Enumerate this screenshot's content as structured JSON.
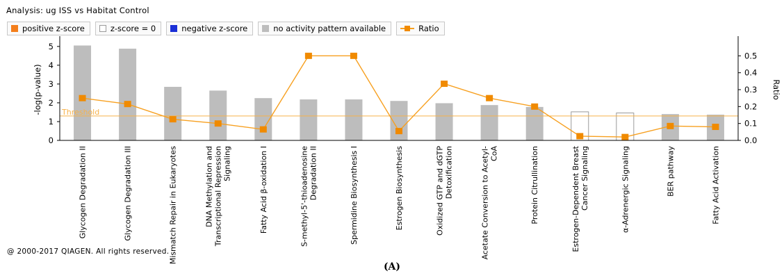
{
  "header": {
    "title": "Analysis: ug ISS vs Habitat Control"
  },
  "legend": [
    {
      "label": "positive z-score",
      "kind": "box",
      "color": "#f47e1b",
      "border": "#f47e1b"
    },
    {
      "label": "z-score = 0",
      "kind": "box",
      "color": "#ffffff",
      "border": "#9a9a9a"
    },
    {
      "label": "negative z-score",
      "kind": "box",
      "color": "#1a2fd6",
      "border": "#1a2fd6"
    },
    {
      "label": "no activity pattern available",
      "kind": "box",
      "color": "#bdbdbd",
      "border": "#bdbdbd"
    },
    {
      "label": "Ratio",
      "kind": "line",
      "color": "#f7a020",
      "border": "#f7a020"
    }
  ],
  "footer": {
    "copyright": "@ 2000-2017 QIAGEN. All rights reserved.",
    "panel_label": "(A)"
  },
  "colors": {
    "bar_gray": "#bdbdbd",
    "bar_zero_fill": "#ffffff",
    "bar_zero_stroke": "#9a9a9a",
    "ratio_line": "#f7a020",
    "ratio_marker": "#f08a00",
    "threshold": "#f7b24a"
  },
  "chart_data": {
    "type": "bar",
    "categories": [
      "Glycogen Degradation II",
      "Glycogen Degradation III",
      "Mismatch Repair in Eukaryotes",
      "DNA Methylation and Transcriptional Repression Signaling",
      "Fatty Acid β-oxidation I",
      "S-methyl-5'-thioadenosine Degradation II",
      "Spermidine Biosynthesis I",
      "Estrogen Biosynthesis",
      "Oxidized GTP and dGTP Detoxification",
      "Acetate Conversion to Acetyl-CoA",
      "Protein Citrullination",
      "Estrogen-Dependent Breast Cancer Signaling",
      "α-Adrenergic Signaling",
      "BER pathway",
      "Fatty Acid Activation"
    ],
    "category_lines": [
      [
        "Glycogen Degradation II"
      ],
      [
        "Glycogen Degradation III"
      ],
      [
        "Mismatch Repair in Eukaryotes"
      ],
      [
        "DNA Methylation and",
        "Transcriptional Repression",
        "Signaling"
      ],
      [
        "Fatty Acid β-oxidation I"
      ],
      [
        "S-methyl-5'-thioadenosine",
        "Degradation II"
      ],
      [
        "Spermidine Biosynthesis I"
      ],
      [
        "Estrogen Biosynthesis"
      ],
      [
        "Oxidized GTP and dGTP",
        "Detoxification"
      ],
      [
        "Acetate Conversion to Acetyl-",
        "CoA"
      ],
      [
        "Protein Citrullination"
      ],
      [
        "Estrogen-Dependent Breast",
        "Cancer Signaling"
      ],
      [
        "α-Adrenergic Signaling"
      ],
      [
        "BER pathway"
      ],
      [
        "Fatty Acid Activation"
      ]
    ],
    "series": [
      {
        "name": "-log(p-value)",
        "axis": "left",
        "values": [
          5.05,
          4.88,
          2.85,
          2.65,
          2.25,
          2.18,
          2.18,
          2.1,
          1.98,
          1.88,
          1.78,
          1.52,
          1.46,
          1.4,
          1.37
        ],
        "zscore": [
          "none",
          "none",
          "none",
          "none",
          "none",
          "none",
          "none",
          "none",
          "none",
          "none",
          "none",
          "zero",
          "zero",
          "none",
          "none"
        ]
      },
      {
        "name": "Ratio",
        "axis": "right",
        "type": "line",
        "values": [
          0.25,
          0.215,
          0.125,
          0.1,
          0.065,
          0.5,
          0.5,
          0.055,
          0.335,
          0.25,
          0.2,
          0.025,
          0.02,
          0.085,
          0.08
        ]
      }
    ],
    "ylabel": "-log(p-value)",
    "y2label": "Ratio",
    "ylim": [
      0,
      5.4
    ],
    "y2lim": [
      0,
      0.6
    ],
    "yticks": [
      "0",
      "1",
      "2",
      "3",
      "4",
      "5"
    ],
    "y2ticks": [
      "0.0",
      "0.1",
      "0.2",
      "0.3",
      "0.4",
      "0.5"
    ],
    "threshold": {
      "label": "Threshold",
      "value": 1.3
    },
    "grid": false
  }
}
